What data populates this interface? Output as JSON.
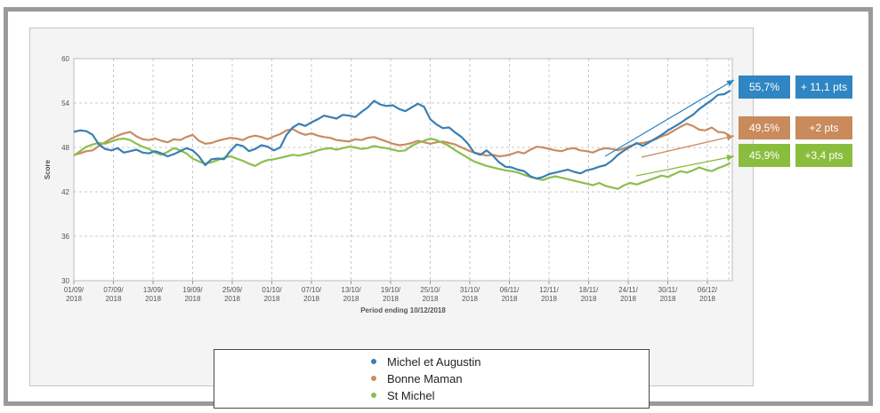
{
  "colors": {
    "michel_et_augustin": "#3a7fb4",
    "bonne_maman": "#c98c62",
    "st_michel": "#8cbf4e"
  },
  "legend": [
    {
      "label": "Michel et Augustin",
      "color": "#3a7fb4"
    },
    {
      "label": "Bonne Maman",
      "color": "#c98c62"
    },
    {
      "label": "St Michel",
      "color": "#8cbf4e"
    }
  ],
  "badges": [
    {
      "value": "55,7%",
      "change": "+ 11,1 pts",
      "color": "#2f86c2"
    },
    {
      "value": "49,5%",
      "change": "+2 pts",
      "color": "#c98a5c"
    },
    {
      "value": "45,9%",
      "change": "+3,4 pts",
      "color": "#8abd3e"
    }
  ],
  "chart_data": {
    "type": "line",
    "title": "",
    "xlabel": "Period ending 10/12/2018",
    "ylabel": "Score",
    "ylim": [
      30,
      60
    ],
    "yticks": [
      30,
      36,
      42,
      48,
      54,
      60
    ],
    "grid": true,
    "legend_position": "bottom",
    "x_tick_labels": [
      [
        "01/09/",
        "2018"
      ],
      [
        "07/09/",
        "2018"
      ],
      [
        "13/09/",
        "2018"
      ],
      [
        "19/09/",
        "2018"
      ],
      [
        "25/09/",
        "2018"
      ],
      [
        "01/10/",
        "2018"
      ],
      [
        "07/10/",
        "2018"
      ],
      [
        "13/10/",
        "2018"
      ],
      [
        "19/10/",
        "2018"
      ],
      [
        "25/10/",
        "2018"
      ],
      [
        "31/10/",
        "2018"
      ],
      [
        "06/11/",
        "2018"
      ],
      [
        "12/11/",
        "2018"
      ],
      [
        "18/11/",
        "2018"
      ],
      [
        "24/11/",
        "2018"
      ],
      [
        "30/11/",
        "2018"
      ],
      [
        "06/12/",
        "2018"
      ]
    ],
    "series": [
      {
        "name": "Michel et Augustin",
        "values": [
          50.1,
          50.3,
          50.2,
          49.7,
          48.4,
          47.8,
          47.6,
          47.9,
          47.3,
          47.5,
          47.7,
          47.3,
          47.2,
          47.5,
          47.2,
          46.8,
          47.1,
          47.5,
          47.9,
          47.6,
          46.8,
          45.6,
          46.4,
          46.5,
          46.4,
          47.5,
          48.4,
          48.2,
          47.5,
          47.8,
          48.3,
          48.1,
          47.6,
          48.0,
          49.7,
          50.7,
          51.2,
          50.9,
          51.4,
          51.8,
          52.3,
          52.1,
          51.9,
          52.4,
          52.3,
          52.1,
          52.8,
          53.4,
          54.3,
          53.8,
          53.6,
          53.7,
          53.2,
          52.9,
          53.4,
          53.9,
          53.5,
          51.8,
          51.1,
          50.6,
          50.7,
          50.0,
          49.4,
          48.5,
          47.3,
          47.0,
          47.6,
          46.9,
          46.0,
          45.4,
          45.3,
          45.0,
          44.8,
          44.1,
          43.8,
          44.0,
          44.4,
          44.6,
          44.8,
          45.0,
          44.7,
          44.5,
          44.9,
          45.1,
          45.4,
          45.6,
          46.2,
          47.0,
          47.6,
          48.1,
          48.6,
          48.2,
          48.7,
          49.2,
          49.7,
          50.3,
          50.8,
          51.3,
          51.9,
          52.4,
          53.2,
          53.8,
          54.4,
          55.1,
          55.2,
          55.7
        ]
      },
      {
        "name": "Bonne Maman",
        "values": [
          47.0,
          47.2,
          47.5,
          47.6,
          48.2,
          48.7,
          49.2,
          49.6,
          49.9,
          50.1,
          49.5,
          49.1,
          49.0,
          49.2,
          48.9,
          48.7,
          49.1,
          49.0,
          49.4,
          49.7,
          48.9,
          48.5,
          48.6,
          48.9,
          49.1,
          49.3,
          49.2,
          49.0,
          49.4,
          49.6,
          49.4,
          49.1,
          49.5,
          49.8,
          50.3,
          50.5,
          50.0,
          49.7,
          49.9,
          49.6,
          49.4,
          49.3,
          49.0,
          48.9,
          48.8,
          49.1,
          49.0,
          49.3,
          49.4,
          49.1,
          48.8,
          48.5,
          48.3,
          48.4,
          48.6,
          48.9,
          48.7,
          48.5,
          48.7,
          48.8,
          48.6,
          48.4,
          48.0,
          47.6,
          47.3,
          47.1,
          46.9,
          47.0,
          46.8,
          46.9,
          47.1,
          47.4,
          47.2,
          47.7,
          48.1,
          48.0,
          47.8,
          47.6,
          47.5,
          47.8,
          47.9,
          47.6,
          47.5,
          47.3,
          47.7,
          47.9,
          47.8,
          47.6,
          47.9,
          48.2,
          48.5,
          48.6,
          48.8,
          49.1,
          49.5,
          49.8,
          50.3,
          50.8,
          51.2,
          50.9,
          50.4,
          50.3,
          50.7,
          50.1,
          50.0,
          49.5
        ]
      },
      {
        "name": "St Michel",
        "values": [
          46.9,
          47.5,
          48.1,
          48.4,
          48.6,
          48.5,
          48.8,
          49.1,
          49.2,
          49.0,
          48.5,
          48.1,
          47.8,
          47.3,
          47.0,
          47.4,
          47.9,
          47.6,
          47.2,
          46.5,
          46.1,
          45.8,
          46.0,
          46.3,
          46.6,
          46.8,
          46.5,
          46.2,
          45.8,
          45.5,
          46.0,
          46.3,
          46.4,
          46.6,
          46.8,
          47.0,
          46.9,
          47.1,
          47.3,
          47.6,
          47.8,
          47.9,
          47.7,
          47.9,
          48.1,
          48.0,
          47.8,
          47.9,
          48.2,
          48.0,
          47.9,
          47.7,
          47.5,
          47.6,
          48.2,
          48.6,
          48.9,
          49.2,
          49.0,
          48.6,
          48.2,
          47.6,
          47.1,
          46.6,
          46.1,
          45.8,
          45.5,
          45.3,
          45.1,
          44.9,
          44.8,
          44.6,
          44.3,
          44.0,
          43.8,
          43.6,
          43.9,
          44.1,
          43.9,
          43.7,
          43.5,
          43.3,
          43.1,
          42.9,
          43.2,
          42.8,
          42.6,
          42.4,
          42.9,
          43.2,
          43.0,
          43.3,
          43.6,
          43.9,
          44.2,
          44.0,
          44.4,
          44.8,
          44.6,
          44.9,
          45.3,
          45.0,
          44.8,
          45.2,
          45.5,
          45.9
        ]
      }
    ]
  }
}
